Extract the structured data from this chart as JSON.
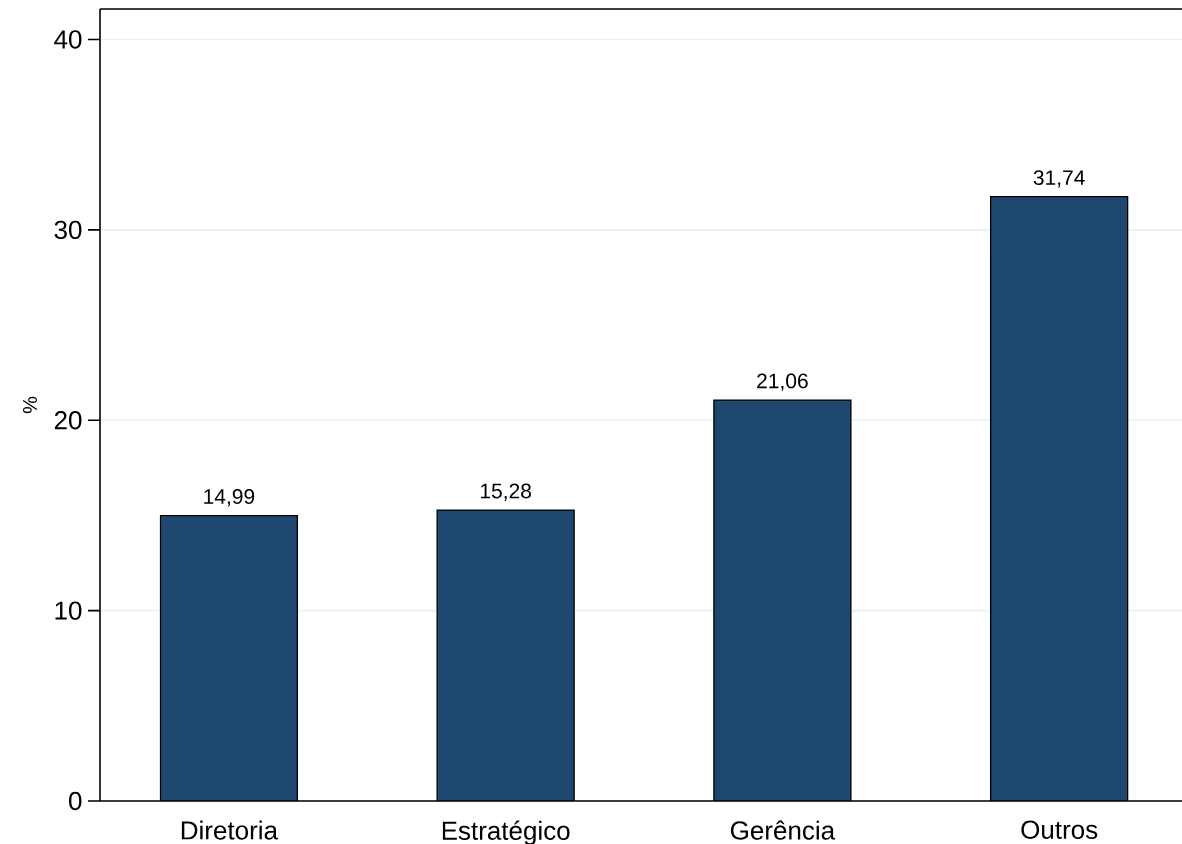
{
  "chart_data": {
    "type": "bar",
    "ylabel": "%",
    "categories": [
      "Diretoria",
      "Estratégico",
      "Gerência",
      "Outros"
    ],
    "values": [
      14.99,
      15.28,
      21.06,
      31.74
    ],
    "value_labels": [
      "14,99",
      "15,28",
      "21,06",
      "31,74"
    ],
    "color": "#1e4870",
    "ylim": [
      0,
      41.6
    ],
    "yticks": [
      0,
      10,
      20,
      30,
      40
    ],
    "grid": "y"
  }
}
